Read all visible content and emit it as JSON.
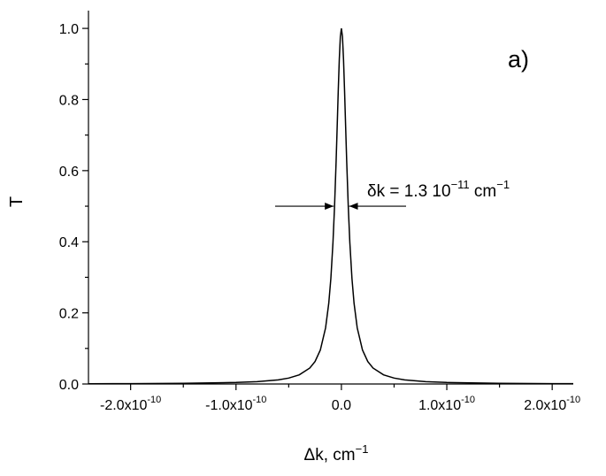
{
  "chart_data": {
    "type": "line",
    "panel_label": "a)",
    "xlabel": {
      "base": "Δk, cm",
      "exp": "−1"
    },
    "ylabel": "T",
    "xlim": [
      -2.4e-10,
      2.2e-10
    ],
    "ylim": [
      0,
      1.05
    ],
    "x_ticks": [
      {
        "value": -2e-10,
        "mant": "-2.0x10",
        "exp": "-10"
      },
      {
        "value": -1e-10,
        "mant": "-1.0x10",
        "exp": "-10"
      },
      {
        "value": 0,
        "mant": "0.0",
        "exp": ""
      },
      {
        "value": 1e-10,
        "mant": "1.0x10",
        "exp": "-10"
      },
      {
        "value": 2e-10,
        "mant": "2.0x10",
        "exp": "-10"
      }
    ],
    "y_ticks": [
      {
        "value": 0.0,
        "label": "0.0"
      },
      {
        "value": 0.2,
        "label": "0.2"
      },
      {
        "value": 0.4,
        "label": "0.4"
      },
      {
        "value": 0.6,
        "label": "0.6"
      },
      {
        "value": 0.8,
        "label": "0.8"
      },
      {
        "value": 1.0,
        "label": "1.0"
      }
    ],
    "series": [
      {
        "color": "#000000",
        "x": [
          -2.4e-10,
          -2e-10,
          -1.5e-10,
          -1e-10,
          -8e-11,
          -6e-11,
          -5e-11,
          -4e-11,
          -3e-11,
          -2.5e-11,
          -2e-11,
          -1.5e-11,
          -1.2e-11,
          -1e-11,
          -8e-12,
          -6.5e-12,
          -5e-12,
          -4e-12,
          -3e-12,
          -2e-12,
          -1e-12,
          0,
          1e-12,
          2e-12,
          3e-12,
          4e-12,
          5e-12,
          6.5e-12,
          8e-12,
          1e-11,
          1.2e-11,
          1.5e-11,
          2e-11,
          2.5e-11,
          3e-11,
          4e-11,
          5e-11,
          6e-11,
          8e-11,
          1e-10,
          1.5e-10,
          2e-10,
          2.2e-10
        ],
        "y": [
          0.0007,
          0.001,
          0.0019,
          0.0042,
          0.0066,
          0.0116,
          0.0166,
          0.0257,
          0.0448,
          0.0633,
          0.0955,
          0.158,
          0.227,
          0.297,
          0.398,
          0.5,
          0.628,
          0.725,
          0.824,
          0.913,
          0.977,
          1.0,
          0.977,
          0.913,
          0.824,
          0.725,
          0.628,
          0.5,
          0.398,
          0.297,
          0.227,
          0.158,
          0.0955,
          0.0633,
          0.0448,
          0.0257,
          0.0166,
          0.0116,
          0.0066,
          0.0042,
          0.0019,
          0.001,
          0.0009
        ]
      }
    ],
    "annotation": {
      "prefix": "δk = 1.3 10",
      "exp": "−11",
      "unit": " cm",
      "unit_exp": "−1",
      "half_max": 0.5,
      "half_width": 6.5e-12
    }
  }
}
